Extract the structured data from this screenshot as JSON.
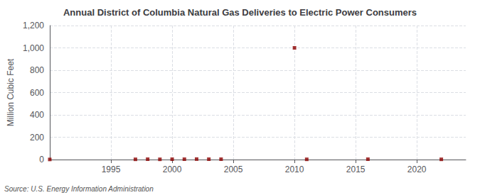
{
  "chart_data": {
    "type": "scatter",
    "title": "Annual District of Columbia Natural Gas Deliveries to Electric Power Consumers",
    "ylabel": "Million Cubic Feet",
    "annotations": [
      "Source: U.S. Energy Information Administration"
    ],
    "x": [
      1990,
      1997,
      1998,
      1999,
      2000,
      2001,
      2002,
      2003,
      2004,
      2010,
      2011,
      2016,
      2022
    ],
    "values": [
      1,
      2,
      3,
      2,
      3,
      3,
      4,
      3,
      3,
      1000,
      2,
      3,
      2
    ],
    "color": "#8b0000",
    "marker": "square",
    "xlim": [
      1990,
      2024
    ],
    "xticks": [
      1995,
      2000,
      2005,
      2010,
      2015,
      2020
    ],
    "ylim": [
      0,
      1200
    ],
    "yticks": [
      0,
      200,
      400,
      {
        "value": 600,
        "label": "600"
      },
      800,
      {
        "value": 1000,
        "label": "1,000"
      },
      {
        "value": 1200,
        "label": "1,200"
      }
    ],
    "grid": true
  }
}
